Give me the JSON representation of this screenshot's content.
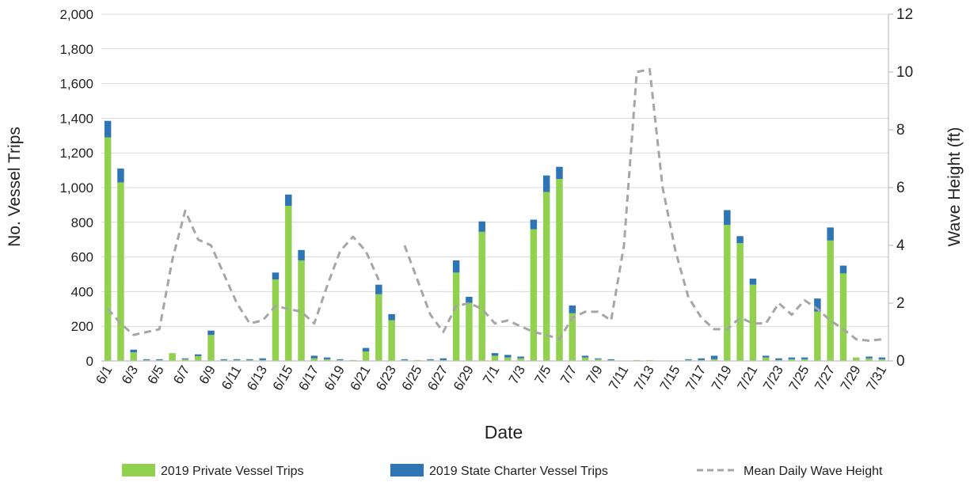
{
  "chart_data": {
    "type": "bar",
    "stacked": true,
    "categories": [
      "6/1",
      "6/2",
      "6/3",
      "6/4",
      "6/5",
      "6/6",
      "6/7",
      "6/8",
      "6/9",
      "6/10",
      "6/11",
      "6/12",
      "6/13",
      "6/14",
      "6/15",
      "6/16",
      "6/17",
      "6/18",
      "6/19",
      "6/20",
      "6/21",
      "6/22",
      "6/23",
      "6/24",
      "6/25",
      "6/26",
      "6/27",
      "6/28",
      "6/29",
      "6/30",
      "7/1",
      "7/2",
      "7/3",
      "7/4",
      "7/5",
      "7/6",
      "7/7",
      "7/8",
      "7/9",
      "7/10",
      "7/11",
      "7/12",
      "7/13",
      "7/14",
      "7/15",
      "7/16",
      "7/17",
      "7/18",
      "7/19",
      "7/20",
      "7/21",
      "7/22",
      "7/23",
      "7/24",
      "7/25",
      "7/26",
      "7/27",
      "7/28",
      "7/29",
      "7/30",
      "7/31"
    ],
    "x_tick_labels": [
      "6/1",
      "6/3",
      "6/5",
      "6/7",
      "6/9",
      "6/11",
      "6/13",
      "6/15",
      "6/17",
      "6/19",
      "6/21",
      "6/23",
      "6/25",
      "6/27",
      "6/29",
      "7/1",
      "7/3",
      "7/5",
      "7/7",
      "7/9",
      "7/11",
      "7/13",
      "7/15",
      "7/17",
      "7/19",
      "7/21",
      "7/23",
      "7/25",
      "7/27",
      "7/29",
      "7/31"
    ],
    "series": [
      {
        "name": "2019 Private Vessel Trips",
        "type": "bar",
        "axis": "left",
        "color": "#92d050",
        "values": [
          1290,
          1030,
          50,
          5,
          5,
          45,
          10,
          28,
          150,
          5,
          5,
          5,
          5,
          470,
          895,
          580,
          15,
          10,
          5,
          5,
          55,
          385,
          235,
          5,
          5,
          5,
          5,
          510,
          335,
          745,
          30,
          20,
          15,
          760,
          975,
          1050,
          275,
          20,
          10,
          5,
          0,
          5,
          5,
          0,
          0,
          5,
          5,
          10,
          785,
          680,
          440,
          20,
          5,
          10,
          10,
          285,
          695,
          505,
          20,
          15,
          10
        ]
      },
      {
        "name": "2019 State Charter Vessel Trips",
        "type": "bar",
        "axis": "left",
        "color": "#2e75b6",
        "values": [
          95,
          80,
          15,
          5,
          5,
          0,
          5,
          10,
          25,
          5,
          5,
          5,
          10,
          40,
          65,
          60,
          15,
          10,
          5,
          0,
          20,
          55,
          35,
          5,
          0,
          5,
          10,
          70,
          35,
          60,
          15,
          15,
          10,
          55,
          95,
          70,
          45,
          10,
          5,
          5,
          0,
          0,
          0,
          0,
          0,
          5,
          10,
          20,
          85,
          40,
          35,
          10,
          10,
          10,
          10,
          75,
          75,
          45,
          0,
          10,
          10
        ]
      },
      {
        "name": "Mean Daily Wave Height",
        "type": "line",
        "axis": "right",
        "style": "dashed",
        "color": "#a6a6a6",
        "values": [
          1.8,
          1.3,
          0.9,
          1.0,
          1.1,
          3.5,
          5.2,
          4.2,
          4.0,
          3.0,
          2.0,
          1.3,
          1.4,
          1.9,
          1.8,
          1.7,
          1.3,
          2.6,
          3.8,
          4.3,
          3.8,
          2.8,
          null,
          4.0,
          2.8,
          1.6,
          1.0,
          1.9,
          2.0,
          1.8,
          1.3,
          1.4,
          1.2,
          1.0,
          0.9,
          0.75,
          1.5,
          1.7,
          1.7,
          1.4,
          4.0,
          10.0,
          10.1,
          6.0,
          3.8,
          2.2,
          1.5,
          1.1,
          1.1,
          1.5,
          1.3,
          1.3,
          2.0,
          1.6,
          2.1,
          1.8,
          1.4,
          1.1,
          0.75,
          0.7,
          0.75
        ]
      }
    ],
    "xlabel": "Date",
    "ylabel": "No. Vessel Trips",
    "y2label": "Wave Height (ft)",
    "ylim": [
      0,
      2000
    ],
    "yticks": [
      0,
      200,
      400,
      600,
      800,
      1000,
      1200,
      1400,
      1600,
      1800,
      2000
    ],
    "ytick_labels": [
      "0",
      "200",
      "400",
      "600",
      "800",
      "1,000",
      "1,200",
      "1,400",
      "1,600",
      "1,800",
      "2,000"
    ],
    "y2lim": [
      0,
      12
    ],
    "y2ticks": [
      0,
      2,
      4,
      6,
      8,
      10,
      12
    ],
    "ytick2_labels": [
      "0",
      "2",
      "4",
      "6",
      "8",
      "10",
      "12"
    ],
    "grid": true,
    "legend_position": "bottom"
  }
}
